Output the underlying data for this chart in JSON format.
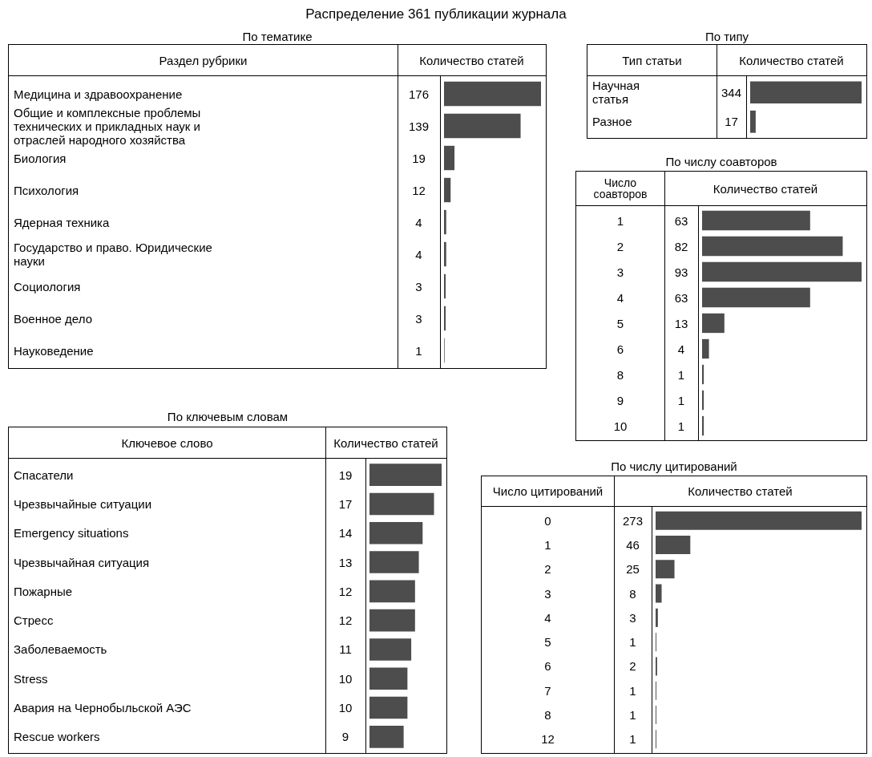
{
  "chart_data": [
    {
      "type": "bar",
      "orientation": "horizontal",
      "title": "Распределение 361 публикации журнала",
      "subtitle": "По тематике",
      "ylabel": "Раздел рубрики",
      "xlabel": "Количество статей",
      "color": "#4d4d4d",
      "data_labels": true,
      "categories": [
        "Медицина и здравоохранение",
        "Общие и комплексные проблемы технических и прикладных наук и отраслей народного хозяйства",
        "Биология",
        "Психология",
        "Ядерная техника",
        "Государство и право. Юридические науки",
        "Социология",
        "Военное дело",
        "Науковедение"
      ],
      "values": [
        176,
        139,
        19,
        12,
        4,
        4,
        3,
        3,
        1
      ]
    },
    {
      "type": "bar",
      "orientation": "horizontal",
      "title": "По типу",
      "ylabel": "Тип статьи",
      "xlabel": "Количество статей",
      "color": "#4d4d4d",
      "data_labels": true,
      "categories": [
        "Научная статья",
        "Разное"
      ],
      "values": [
        344,
        17
      ]
    },
    {
      "type": "bar",
      "orientation": "horizontal",
      "title": "По числу соавторов",
      "ylabel": "Число соавторов",
      "xlabel": "Количество статей",
      "color": "#4d4d4d",
      "data_labels": true,
      "categories": [
        "1",
        "2",
        "3",
        "4",
        "5",
        "6",
        "8",
        "9",
        "10"
      ],
      "values": [
        63,
        82,
        93,
        63,
        13,
        4,
        1,
        1,
        1
      ]
    },
    {
      "type": "bar",
      "orientation": "horizontal",
      "title": "По ключевым словам",
      "ylabel": "Ключевое слово",
      "xlabel": "Количество статей",
      "color": "#4d4d4d",
      "data_labels": true,
      "categories": [
        "Спасатели",
        "Чрезвычайные ситуации",
        "Emergency situations",
        "Чрезвычайная ситуация",
        "Пожарные",
        "Стресс",
        "Заболеваемость",
        "Stress",
        "Авария на Чернобыльской АЭС",
        "Rescue workers"
      ],
      "values": [
        19,
        17,
        14,
        13,
        12,
        12,
        11,
        10,
        10,
        9
      ]
    },
    {
      "type": "bar",
      "orientation": "horizontal",
      "title": "По числу цитирований",
      "ylabel": "Число цитирований",
      "xlabel": "Количество статей",
      "color": "#4d4d4d",
      "data_labels": true,
      "categories": [
        "0",
        "1",
        "2",
        "3",
        "4",
        "5",
        "6",
        "7",
        "8",
        "12"
      ],
      "values": [
        273,
        46,
        25,
        8,
        3,
        1,
        2,
        1,
        1,
        1
      ]
    }
  ]
}
